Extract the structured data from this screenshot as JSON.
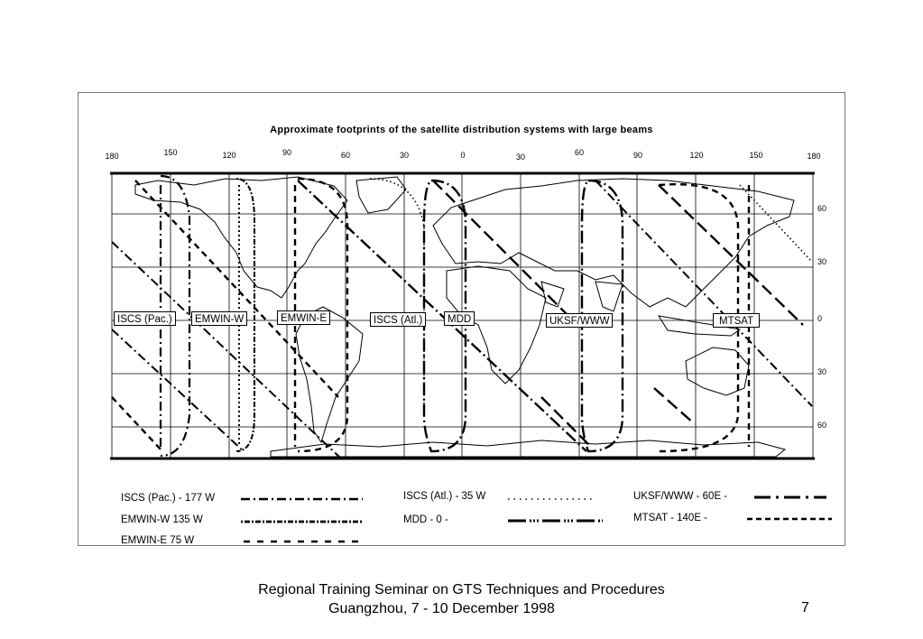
{
  "title": "Approximate footprints of the satellite distribution systems with large beams",
  "longitude_ticks": [
    "180",
    "150",
    "120",
    "90",
    "60",
    "30",
    "0",
    "30",
    "60",
    "90",
    "120",
    "150",
    "180"
  ],
  "latitude_ticks": [
    "60",
    "30",
    "0",
    "30",
    "60"
  ],
  "beam_labels": [
    "ISCS (Pac.)",
    "EMWIN-W",
    "EMWIN-E",
    "ISCS (Atl.)",
    "MDD",
    "UKSF/WWW",
    "MTSAT"
  ],
  "legend": [
    {
      "text": "ISCS (Pac.) - 177 W",
      "style": "dash-dot"
    },
    {
      "text": "EMWIN-W 135 W",
      "style": "dot-dash-dense"
    },
    {
      "text": "EMWIN-E 75 W",
      "style": "dashed"
    },
    {
      "text": "ISCS (Atl.) - 35 W",
      "style": "dotted"
    },
    {
      "text": "MDD - 0 -",
      "style": "long-dash-dot"
    },
    {
      "text": "UKSF/WWW - 60E -",
      "style": "long-dash-dot"
    },
    {
      "text": "MTSAT - 140E -",
      "style": "dashed"
    }
  ],
  "footer": {
    "line1": "Regional Training Seminar on GTS Techniques and Procedures",
    "line2": "Guangzhou, 7 - 10 December 1998",
    "page": "7"
  }
}
